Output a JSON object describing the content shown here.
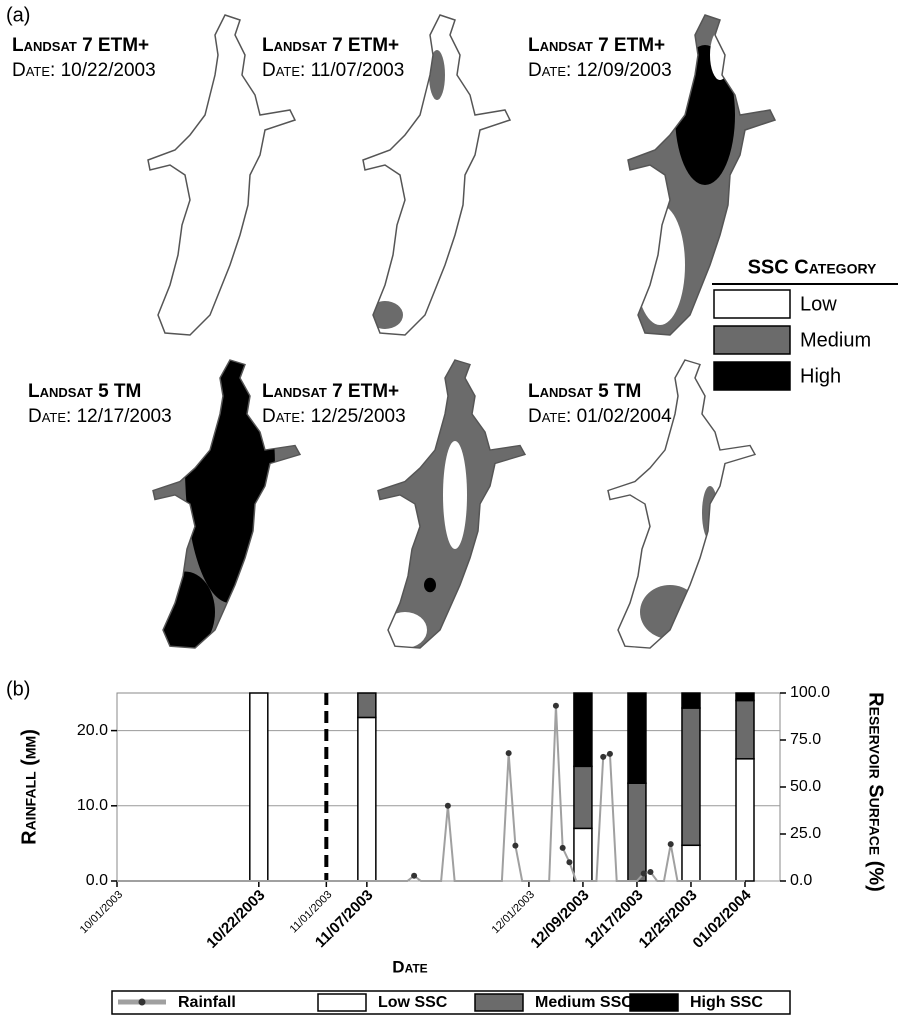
{
  "panel_a": {
    "label": "(a)",
    "maps": [
      {
        "sensor": "Landsat 7 ETM+",
        "date": "Date: 10/22/2003"
      },
      {
        "sensor": "Landsat 7 ETM+",
        "date": "Date: 11/07/2003"
      },
      {
        "sensor": "Landsat 7 ETM+",
        "date": "Date: 12/09/2003"
      },
      {
        "sensor": "Landsat 5 TM",
        "date": "Date: 12/17/2003"
      },
      {
        "sensor": "Landsat 7 ETM+",
        "date": "Date: 12/25/2003"
      },
      {
        "sensor": "Landsat 5 TM",
        "date": "Date: 01/02/2004"
      }
    ],
    "legend": {
      "title": "SSC Category",
      "items": [
        {
          "name": "Low",
          "color": "#ffffff"
        },
        {
          "name": "Medium",
          "color": "#6b6b6b"
        },
        {
          "name": "High",
          "color": "#000000"
        }
      ]
    }
  },
  "chart_data": {
    "type": "bar",
    "label": "(b)",
    "xlabel": "Date",
    "ylabel": "Rainfall (mm)",
    "y2label": "Reservoir Surface (%)",
    "ylim": [
      0,
      25
    ],
    "yticks": [
      {
        "value": 0,
        "label": "0.0"
      },
      {
        "value": 10,
        "label": "10.0"
      },
      {
        "value": 20,
        "label": "20.0"
      }
    ],
    "y2lim": [
      0,
      100
    ],
    "y2ticks": [
      {
        "value": 0,
        "label": "0.0"
      },
      {
        "value": 25,
        "label": "25.0"
      },
      {
        "value": 50,
        "label": "50.0"
      },
      {
        "value": 75,
        "label": "75.0"
      },
      {
        "value": 100,
        "label": "100.0"
      }
    ],
    "xticks": [
      "10/01/2003",
      "10/22/2003",
      "11/01/2003",
      "11/07/2003",
      "12/01/2003",
      "12/09/2003",
      "12/17/2003",
      "12/25/2003",
      "01/02/2004"
    ],
    "x": [
      "10/22/2003",
      "11/07/2003",
      "12/09/2003",
      "12/17/2003",
      "12/25/2003",
      "01/02/2004"
    ],
    "grid": true,
    "reference_line": "11/01/2003",
    "series": [
      {
        "name": "Low SSC",
        "color": "#ffffff",
        "axis": "y2",
        "values": [
          100,
          87,
          28,
          0,
          19,
          65
        ]
      },
      {
        "name": "Medium SSC",
        "color": "#6b6b6b",
        "axis": "y2",
        "values": [
          0,
          13,
          33,
          52,
          73,
          31
        ]
      },
      {
        "name": "High SSC",
        "color": "#000000",
        "axis": "y2",
        "values": [
          0,
          0,
          39,
          48,
          8,
          4
        ]
      },
      {
        "name": "Rainfall",
        "type": "line",
        "color": "#a0a0a0",
        "x": [
          "10/01/2003",
          "11/13/2003",
          "11/14/2003",
          "11/15/2003",
          "11/18/2003",
          "11/19/2003",
          "11/20/2003",
          "11/27/2003",
          "11/28/2003",
          "11/29/2003",
          "11/30/2003",
          "12/04/2003",
          "12/05/2003",
          "12/06/2003",
          "12/07/2003",
          "12/08/2003",
          "12/11/2003",
          "12/12/2003",
          "12/13/2003",
          "12/14/2003",
          "12/17/2003",
          "12/18/2003",
          "12/19/2003",
          "12/20/2003",
          "12/21/2003",
          "12/22/2003",
          "12/23/2003",
          "01/02/2004"
        ],
        "values": [
          0,
          0,
          0.7,
          0,
          0,
          10,
          0,
          0,
          17,
          4.7,
          0,
          0,
          23.3,
          4.4,
          2.5,
          0,
          0,
          16.5,
          16.9,
          0,
          0,
          1,
          1.2,
          0,
          0,
          4.9,
          0,
          0
        ]
      }
    ]
  }
}
